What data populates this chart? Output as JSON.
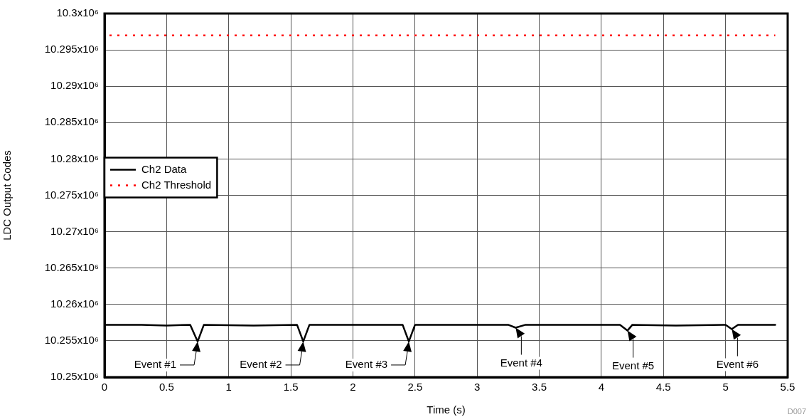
{
  "chart_data": {
    "type": "line",
    "xlabel": "Time (s)",
    "ylabel": "LDC Output Codes",
    "xlim": [
      0,
      5.5
    ],
    "xticks": [
      0,
      0.5,
      1,
      1.5,
      2,
      2.5,
      3,
      3.5,
      4,
      4.5,
      5,
      5.5
    ],
    "ylim": [
      10250000,
      10300000
    ],
    "yticks": [
      {
        "value": 10250000,
        "label": "10.25x10⁶"
      },
      {
        "value": 10255000,
        "label": "10.255x10⁶"
      },
      {
        "value": 10260000,
        "label": "10.26x10⁶"
      },
      {
        "value": 10265000,
        "label": "10.265x10⁶"
      },
      {
        "value": 10270000,
        "label": "10.27x10⁶"
      },
      {
        "value": 10275000,
        "label": "10.275x10⁶"
      },
      {
        "value": 10280000,
        "label": "10.28x10⁶"
      },
      {
        "value": 10285000,
        "label": "10.285x10⁶"
      },
      {
        "value": 10290000,
        "label": "10.29x10⁶"
      },
      {
        "value": 10295000,
        "label": "10.295x10⁶"
      },
      {
        "value": 10300000,
        "label": "10.3x10⁶"
      }
    ],
    "grid": true,
    "legend": "left",
    "marker": "none",
    "series": [
      {
        "name": "Ch2 Data",
        "color": "#000000",
        "line_style": "solid",
        "x": [
          0,
          0.3,
          0.5,
          0.69,
          0.75,
          0.8,
          1.2,
          1.55,
          1.6,
          1.65,
          2.0,
          2.4,
          2.45,
          2.5,
          3.0,
          3.25,
          3.31,
          3.39,
          3.8,
          4.15,
          4.21,
          4.25,
          4.6,
          5.0,
          5.05,
          5.1,
          5.4
        ],
        "values": [
          10257200,
          10257200,
          10257100,
          10257200,
          10254900,
          10257200,
          10257100,
          10257200,
          10254900,
          10257200,
          10257200,
          10257200,
          10254900,
          10257200,
          10257200,
          10257200,
          10256800,
          10257200,
          10257200,
          10257200,
          10256400,
          10257200,
          10257100,
          10257200,
          10256600,
          10257200,
          10257200
        ]
      },
      {
        "name": "Ch2 Threshold",
        "color": "#ff0000",
        "line_style": "dotted",
        "x": [
          0,
          5.4
        ],
        "values": [
          10297000,
          10297000
        ]
      }
    ],
    "annotations": [
      {
        "text": "Event #1",
        "x": 0.75,
        "y": 10254900
      },
      {
        "text": "Event #2",
        "x": 1.6,
        "y": 10254900
      },
      {
        "text": "Event #3",
        "x": 2.45,
        "y": 10254900
      },
      {
        "text": "Event #4",
        "x": 3.31,
        "y": 10256800
      },
      {
        "text": "Event #5",
        "x": 4.21,
        "y": 10256400
      },
      {
        "text": "Event #6",
        "x": 5.05,
        "y": 10256600
      },
      "D007"
    ]
  }
}
